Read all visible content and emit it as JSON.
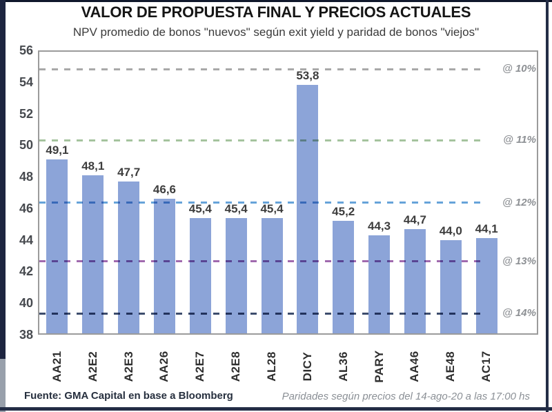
{
  "title": "VALOR DE PROPUESTA FINAL Y PRECIOS ACTUALES",
  "subtitle": "NPV promedio de bonos \"nuevos\" según exit yield y paridad de bonos \"viejos\"",
  "footer": {
    "source": "Fuente: GMA Capital en base a Bloomberg",
    "note": "Paridades según precios del 14-ago-20 a las 17:00 hs"
  },
  "chart_data": {
    "type": "bar",
    "title": "VALOR DE PROPUESTA FINAL Y PRECIOS ACTUALES",
    "subtitle": "NPV promedio de bonos \"nuevos\" según exit yield y paridad de bonos \"viejos\"",
    "categories": [
      "AA21",
      "A2E2",
      "A2E3",
      "AA26",
      "A2E7",
      "A2E8",
      "AL28",
      "DICY",
      "AL36",
      "PARY",
      "AA46",
      "AE48",
      "AC17"
    ],
    "values": [
      49.1,
      48.1,
      47.7,
      46.6,
      45.4,
      45.4,
      45.4,
      53.8,
      45.2,
      44.3,
      44.7,
      44.0,
      44.1
    ],
    "value_labels": [
      "49,1",
      "48,1",
      "47,7",
      "46,6",
      "45,4",
      "45,4",
      "45,4",
      "53,8",
      "45,2",
      "44,3",
      "44,7",
      "44,0",
      "44,1"
    ],
    "xlabel": "",
    "ylabel": "",
    "ylim": [
      38,
      56
    ],
    "yticks": [
      56,
      54,
      52,
      50,
      48,
      46,
      44,
      42,
      40,
      38
    ],
    "grid": false,
    "legend": "none",
    "bar_color": "#8CA4D8",
    "reference_lines": [
      {
        "label": "@ 10%",
        "value": 54.8,
        "color": "#A9A9A9"
      },
      {
        "label": "@ 11%",
        "value": 50.3,
        "color": "#A5C39E"
      },
      {
        "label": "@ 12%",
        "value": 46.35,
        "color": "#66A3D9"
      },
      {
        "label": "@ 13%",
        "value": 42.65,
        "color": "#A06AAE"
      },
      {
        "label": "@ 14%",
        "value": 39.35,
        "color": "#3D4D6D"
      }
    ]
  }
}
